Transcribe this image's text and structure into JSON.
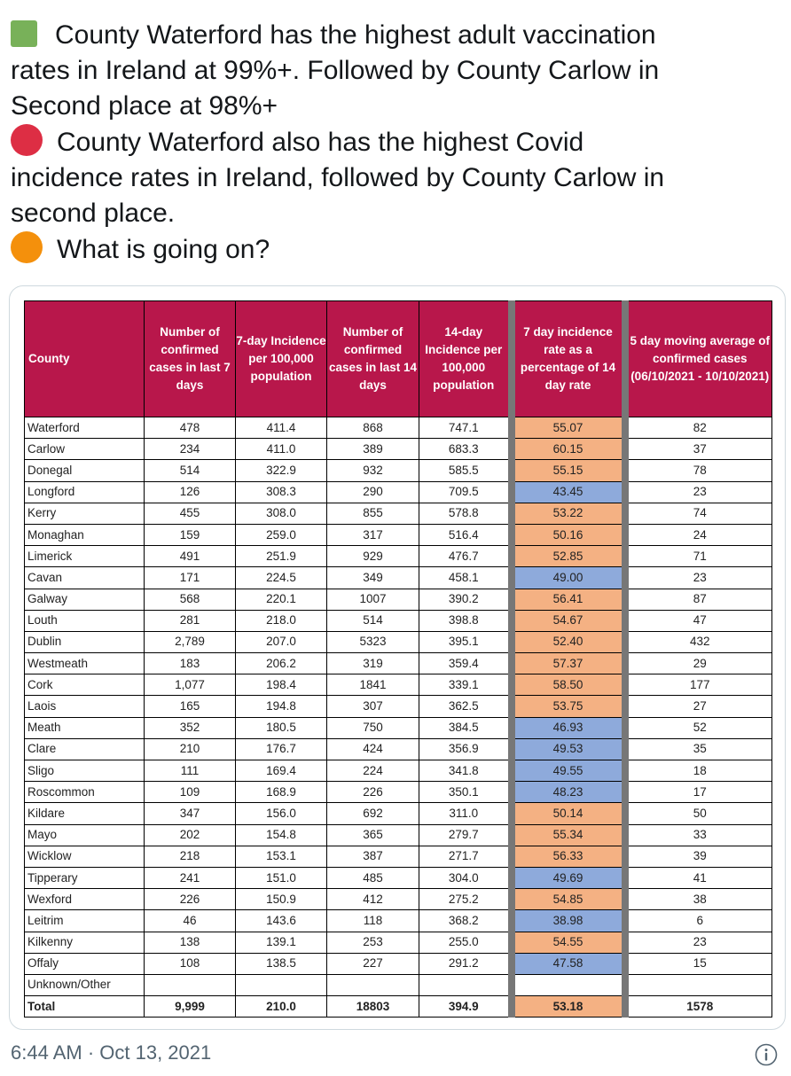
{
  "tweet": {
    "lines": [
      "County Waterford has the highest adult vaccination",
      "rates in Ireland at 99%+.  Followed by County Carlow in",
      "Second place at 98%+",
      "County Waterford also has the highest Covid",
      "incidence rates in Ireland, followed by County Carlow in",
      "second place.",
      "What is going on?"
    ],
    "emoji_icons": [
      "green-square-icon",
      "red-circle-icon",
      "orange-circle-icon"
    ]
  },
  "table": {
    "headers": [
      "County",
      "Number of confirmed cases in last 7 days",
      "7-day Incidence per 100,000 population",
      "Number of confirmed cases in last 14 days",
      "14-day Incidence per 100,000 population",
      "7 day incidence rate as a percentage of 14 day rate",
      "5 day moving average of confirmed cases (06/10/2021 - 10/10/2021)"
    ],
    "rows": [
      {
        "county": "Waterford",
        "c7": "478",
        "i7": "411.4",
        "c14": "868",
        "i14": "747.1",
        "pct": "55.07",
        "pct_color": "orange",
        "avg": "82"
      },
      {
        "county": "Carlow",
        "c7": "234",
        "i7": "411.0",
        "c14": "389",
        "i14": "683.3",
        "pct": "60.15",
        "pct_color": "orange",
        "avg": "37"
      },
      {
        "county": "Donegal",
        "c7": "514",
        "i7": "322.9",
        "c14": "932",
        "i14": "585.5",
        "pct": "55.15",
        "pct_color": "orange",
        "avg": "78"
      },
      {
        "county": "Longford",
        "c7": "126",
        "i7": "308.3",
        "c14": "290",
        "i14": "709.5",
        "pct": "43.45",
        "pct_color": "blue",
        "avg": "23"
      },
      {
        "county": "Kerry",
        "c7": "455",
        "i7": "308.0",
        "c14": "855",
        "i14": "578.8",
        "pct": "53.22",
        "pct_color": "orange",
        "avg": "74"
      },
      {
        "county": "Monaghan",
        "c7": "159",
        "i7": "259.0",
        "c14": "317",
        "i14": "516.4",
        "pct": "50.16",
        "pct_color": "orange",
        "avg": "24"
      },
      {
        "county": "Limerick",
        "c7": "491",
        "i7": "251.9",
        "c14": "929",
        "i14": "476.7",
        "pct": "52.85",
        "pct_color": "orange",
        "avg": "71"
      },
      {
        "county": "Cavan",
        "c7": "171",
        "i7": "224.5",
        "c14": "349",
        "i14": "458.1",
        "pct": "49.00",
        "pct_color": "blue",
        "avg": "23"
      },
      {
        "county": "Galway",
        "c7": "568",
        "i7": "220.1",
        "c14": "1007",
        "i14": "390.2",
        "pct": "56.41",
        "pct_color": "orange",
        "avg": "87"
      },
      {
        "county": "Louth",
        "c7": "281",
        "i7": "218.0",
        "c14": "514",
        "i14": "398.8",
        "pct": "54.67",
        "pct_color": "orange",
        "avg": "47"
      },
      {
        "county": "Dublin",
        "c7": "2,789",
        "i7": "207.0",
        "c14": "5323",
        "i14": "395.1",
        "pct": "52.40",
        "pct_color": "orange",
        "avg": "432"
      },
      {
        "county": "Westmeath",
        "c7": "183",
        "i7": "206.2",
        "c14": "319",
        "i14": "359.4",
        "pct": "57.37",
        "pct_color": "orange",
        "avg": "29"
      },
      {
        "county": "Cork",
        "c7": "1,077",
        "i7": "198.4",
        "c14": "1841",
        "i14": "339.1",
        "pct": "58.50",
        "pct_color": "orange",
        "avg": "177"
      },
      {
        "county": "Laois",
        "c7": "165",
        "i7": "194.8",
        "c14": "307",
        "i14": "362.5",
        "pct": "53.75",
        "pct_color": "orange",
        "avg": "27"
      },
      {
        "county": "Meath",
        "c7": "352",
        "i7": "180.5",
        "c14": "750",
        "i14": "384.5",
        "pct": "46.93",
        "pct_color": "blue",
        "avg": "52"
      },
      {
        "county": "Clare",
        "c7": "210",
        "i7": "176.7",
        "c14": "424",
        "i14": "356.9",
        "pct": "49.53",
        "pct_color": "blue",
        "avg": "35"
      },
      {
        "county": "Sligo",
        "c7": "111",
        "i7": "169.4",
        "c14": "224",
        "i14": "341.8",
        "pct": "49.55",
        "pct_color": "blue",
        "avg": "18"
      },
      {
        "county": "Roscommon",
        "c7": "109",
        "i7": "168.9",
        "c14": "226",
        "i14": "350.1",
        "pct": "48.23",
        "pct_color": "blue",
        "avg": "17"
      },
      {
        "county": "Kildare",
        "c7": "347",
        "i7": "156.0",
        "c14": "692",
        "i14": "311.0",
        "pct": "50.14",
        "pct_color": "orange",
        "avg": "50"
      },
      {
        "county": "Mayo",
        "c7": "202",
        "i7": "154.8",
        "c14": "365",
        "i14": "279.7",
        "pct": "55.34",
        "pct_color": "orange",
        "avg": "33"
      },
      {
        "county": "Wicklow",
        "c7": "218",
        "i7": "153.1",
        "c14": "387",
        "i14": "271.7",
        "pct": "56.33",
        "pct_color": "orange",
        "avg": "39"
      },
      {
        "county": "Tipperary",
        "c7": "241",
        "i7": "151.0",
        "c14": "485",
        "i14": "304.0",
        "pct": "49.69",
        "pct_color": "blue",
        "avg": "41"
      },
      {
        "county": "Wexford",
        "c7": "226",
        "i7": "150.9",
        "c14": "412",
        "i14": "275.2",
        "pct": "54.85",
        "pct_color": "orange",
        "avg": "38"
      },
      {
        "county": "Leitrim",
        "c7": "46",
        "i7": "143.6",
        "c14": "118",
        "i14": "368.2",
        "pct": "38.98",
        "pct_color": "blue",
        "avg": "6"
      },
      {
        "county": "Kilkenny",
        "c7": "138",
        "i7": "139.1",
        "c14": "253",
        "i14": "255.0",
        "pct": "54.55",
        "pct_color": "orange",
        "avg": "23"
      },
      {
        "county": "Offaly",
        "c7": "108",
        "i7": "138.5",
        "c14": "227",
        "i14": "291.2",
        "pct": "47.58",
        "pct_color": "blue",
        "avg": "15"
      },
      {
        "county": "Unknown/Other",
        "c7": "",
        "i7": "",
        "c14": "",
        "i14": "",
        "pct": "",
        "pct_color": "white",
        "avg": ""
      }
    ],
    "total": {
      "county": "Total",
      "c7": "9,999",
      "i7": "210.0",
      "c14": "18803",
      "i14": "394.9",
      "pct": "53.18",
      "pct_color": "orange",
      "avg": "1578"
    }
  },
  "footer": {
    "timestamp": "6:44 AM · Oct 13, 2021",
    "info_icon": "info-icon"
  },
  "colors": {
    "header_bg": "#b8174b",
    "pct_orange": "#f4b183",
    "pct_blue": "#8eaadb"
  }
}
